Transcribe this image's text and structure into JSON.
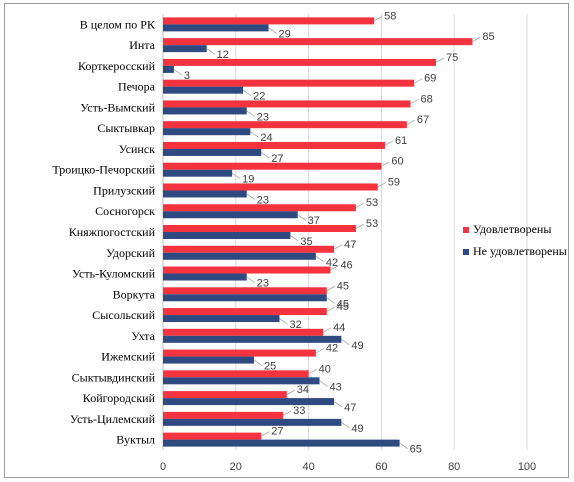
{
  "chart_data": {
    "type": "bar",
    "orientation": "horizontal",
    "categories": [
      "В целом по РК",
      "Инта",
      "Корткеросский",
      "Печора",
      "Усть-Вымский",
      "Сыктывкар",
      "Усинск",
      "Троицко-Печорский",
      "Прилузский",
      "Сосногорск",
      "Княжпогостский",
      "Удорский",
      "Усть-Куломский",
      "Воркута",
      "Сысольский",
      "Ухта",
      "Ижемский",
      "Сыктывдинский",
      "Койгородский",
      "Усть-Цилемский",
      "Вуктыл"
    ],
    "series": [
      {
        "name": "Удовлетворены",
        "color": "#f5333f",
        "values": [
          58,
          85,
          75,
          69,
          68,
          67,
          61,
          60,
          59,
          53,
          53,
          47,
          46,
          45,
          45,
          44,
          42,
          40,
          34,
          33,
          27
        ]
      },
      {
        "name": "Не удовлетворены",
        "color": "#2e4a80",
        "values": [
          29,
          12,
          3,
          22,
          23,
          24,
          27,
          19,
          23,
          37,
          35,
          42,
          23,
          45,
          32,
          49,
          25,
          43,
          47,
          49,
          65
        ]
      }
    ],
    "xlim": [
      0,
      100
    ],
    "xticks": [
      0,
      20,
      40,
      60,
      80,
      100
    ],
    "grid": true,
    "legend_position": "right"
  }
}
